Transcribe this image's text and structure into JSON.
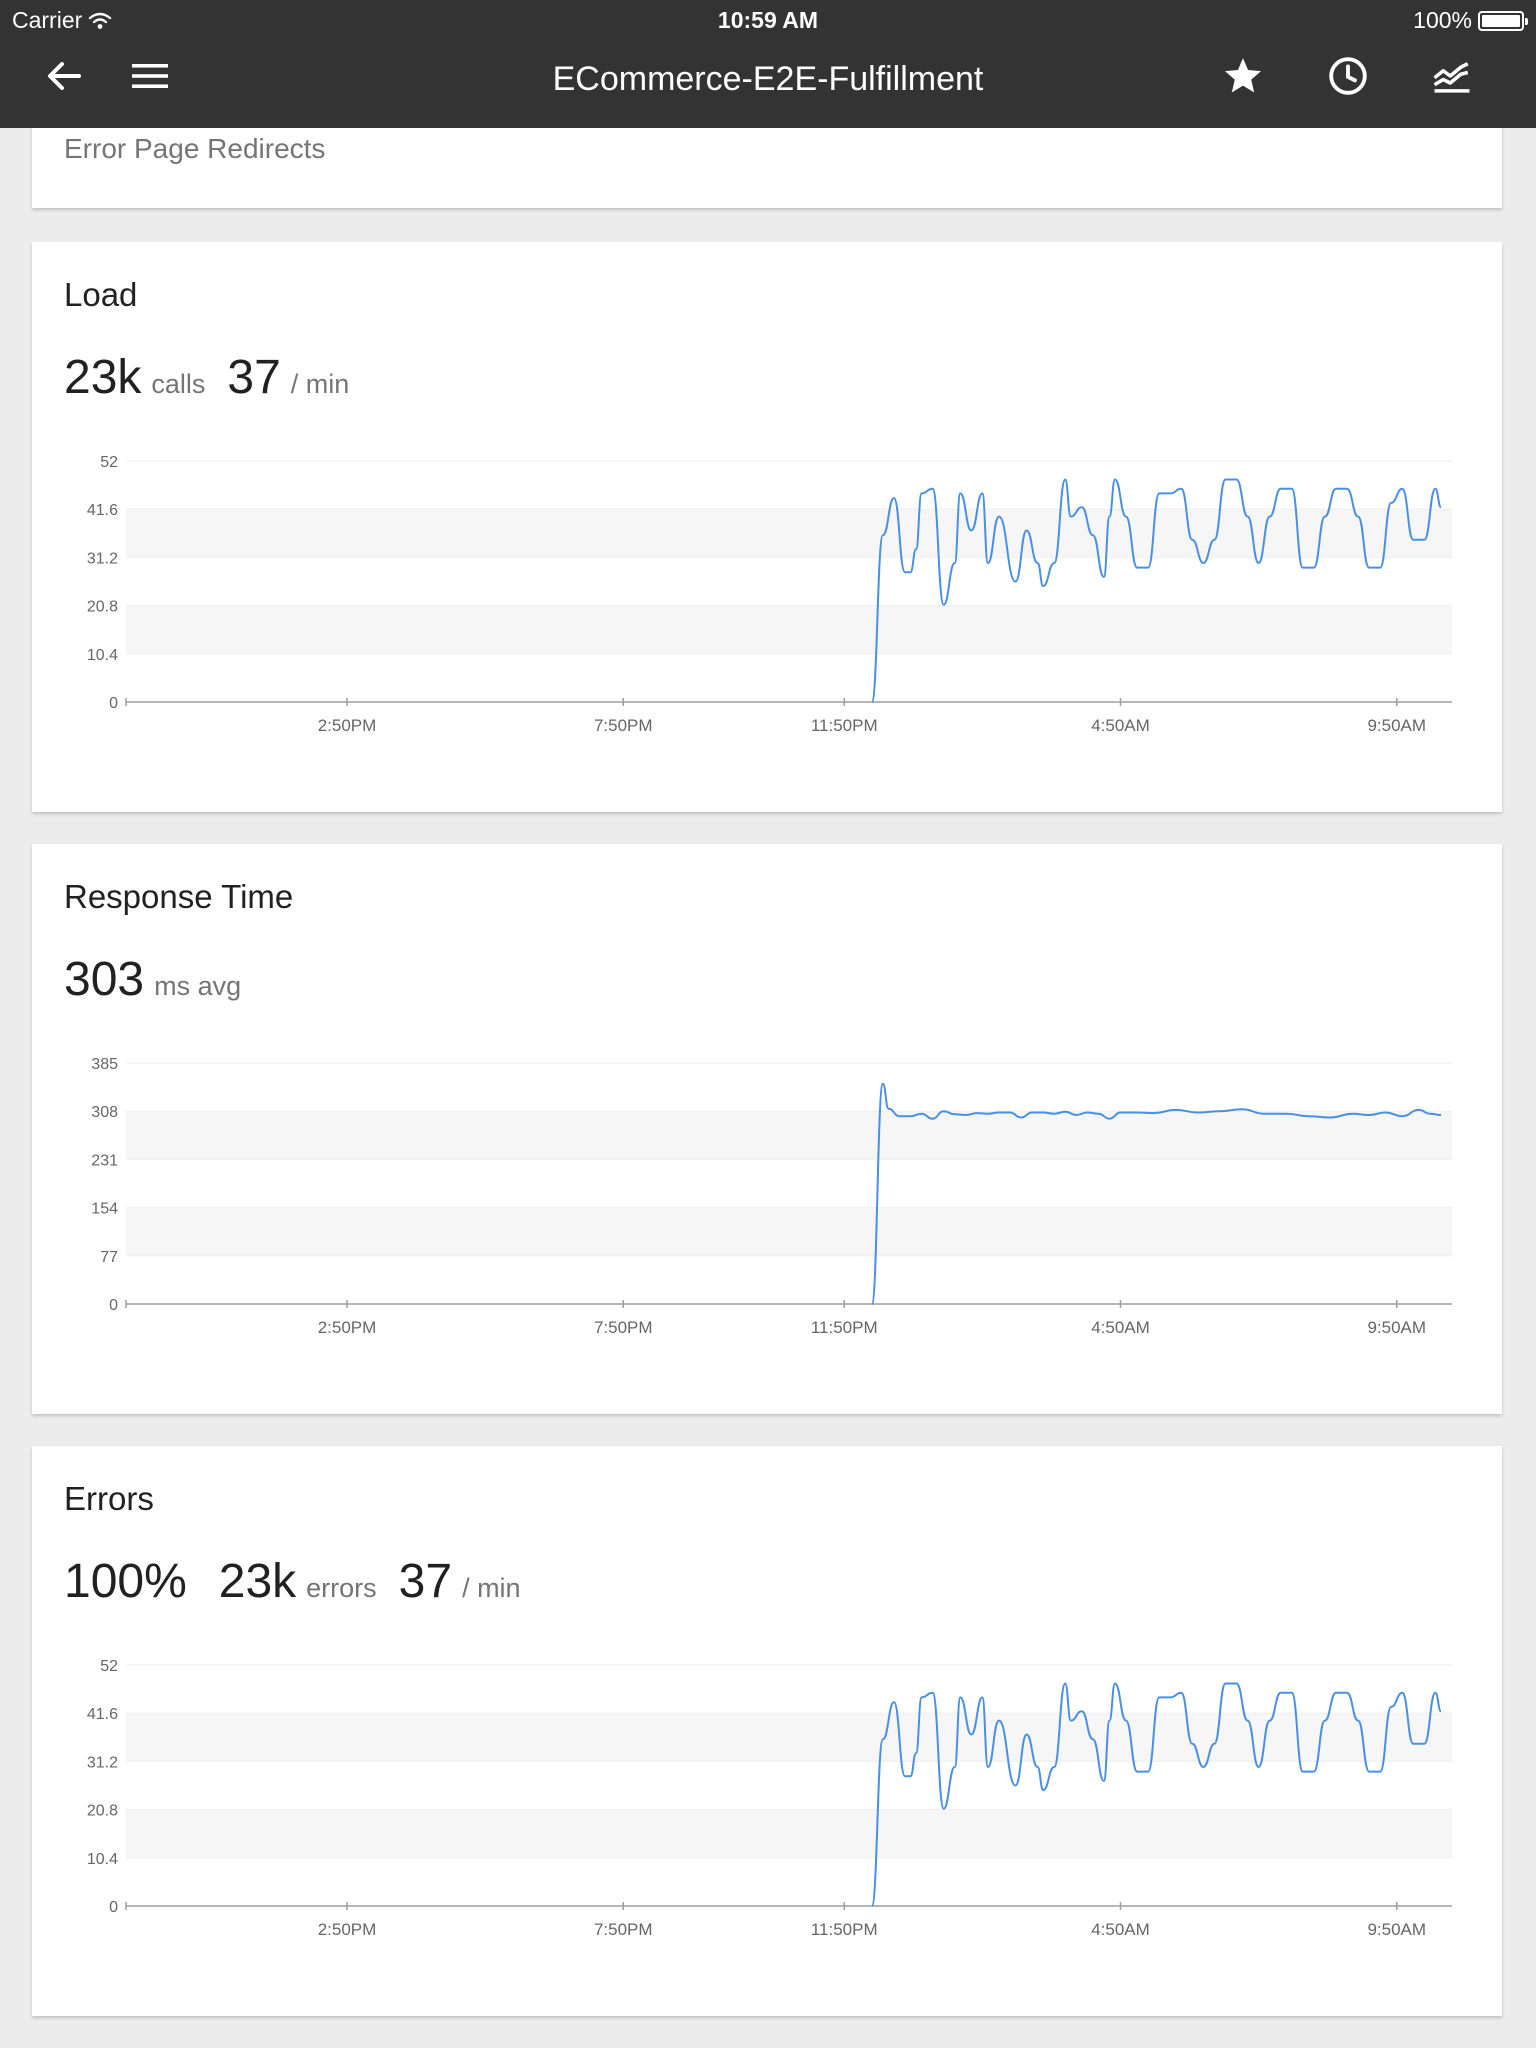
{
  "status_bar": {
    "carrier": "Carrier",
    "time": "10:59 AM",
    "battery": "100%"
  },
  "app_bar": {
    "title": "ECommerce-E2E-Fulfillment",
    "icons": [
      "back-arrow-icon",
      "menu-icon",
      "star-icon",
      "clock-icon",
      "trend-chart-icon"
    ]
  },
  "previous_card": {
    "label": "Error Page Redirects"
  },
  "colors": {
    "app_bar": "#333333",
    "line": "#4a90e2",
    "page_bg": "#ececec",
    "band": "#f6f6f6"
  },
  "cards": {
    "load": {
      "title": "Load",
      "metrics": [
        {
          "value": "23k",
          "unit": "calls"
        },
        {
          "value": "37",
          "unit": "/ min"
        }
      ]
    },
    "response_time": {
      "title": "Response Time",
      "metrics": [
        {
          "value": "303",
          "unit": "ms avg"
        }
      ]
    },
    "errors": {
      "title": "Errors",
      "metrics": [
        {
          "value": "100%",
          "unit": ""
        },
        {
          "value": "23k",
          "unit": "errors"
        },
        {
          "value": "37",
          "unit": "/ min"
        }
      ]
    }
  },
  "chart_data": [
    {
      "type": "line",
      "title": "",
      "y_ticks": [
        "0",
        "10.4",
        "20.8",
        "31.2",
        "41.6",
        "52"
      ],
      "ylim": [
        0,
        52
      ],
      "x_tick_labels": [
        "2:50PM",
        "7:50PM",
        "11:50PM",
        "4:50AM",
        "9:50AM"
      ],
      "x_tick_hours": [
        0,
        5,
        9,
        14,
        19
      ],
      "xlim_hours": [
        -4,
        20
      ],
      "grid_bands": true,
      "series": [
        {
          "color": "#4a90e2",
          "x_hours": [
            9.5,
            9.7,
            9.9,
            10.1,
            10.2,
            10.3,
            10.4,
            10.6,
            10.8,
            11.0,
            11.1,
            11.3,
            11.5,
            11.6,
            11.8,
            12.1,
            12.3,
            12.5,
            12.6,
            12.8,
            13.0,
            13.1,
            13.3,
            13.5,
            13.7,
            13.8,
            13.9,
            14.1,
            14.3,
            14.5,
            14.7,
            14.9,
            15.1,
            15.3,
            15.5,
            15.7,
            15.9,
            16.1,
            16.3,
            16.5,
            16.7,
            16.9,
            17.1,
            17.3,
            17.5,
            17.7,
            17.9,
            18.1,
            18.3,
            18.5,
            18.7,
            18.9,
            19.1,
            19.3,
            19.5,
            19.7,
            19.8
          ],
          "y": [
            0,
            36,
            44,
            28,
            28,
            33,
            45,
            46,
            21,
            30,
            45,
            37,
            45,
            30,
            40,
            26,
            37,
            30,
            25,
            30,
            48,
            40,
            42,
            36,
            27,
            40,
            48,
            40,
            29,
            29,
            45,
            45,
            46,
            35,
            30,
            35,
            48,
            48,
            40,
            30,
            40,
            46,
            46,
            29,
            29,
            40,
            46,
            46,
            40,
            29,
            29,
            43,
            46,
            35,
            35,
            46,
            42
          ]
        }
      ]
    },
    {
      "type": "line",
      "title": "",
      "y_ticks": [
        "0",
        "77",
        "154",
        "231",
        "308",
        "385"
      ],
      "ylim": [
        0,
        385
      ],
      "x_tick_labels": [
        "2:50PM",
        "7:50PM",
        "11:50PM",
        "4:50AM",
        "9:50AM"
      ],
      "x_tick_hours": [
        0,
        5,
        9,
        14,
        19
      ],
      "xlim_hours": [
        -4,
        20
      ],
      "grid_bands": true,
      "series": [
        {
          "color": "#4a90e2",
          "x_hours": [
            9.5,
            9.7,
            9.8,
            10.0,
            10.2,
            10.4,
            10.6,
            10.8,
            11.0,
            11.2,
            11.4,
            11.6,
            11.8,
            12.0,
            12.2,
            12.4,
            12.6,
            12.8,
            13.0,
            13.2,
            13.4,
            13.6,
            13.8,
            14.0,
            14.3,
            14.6,
            15.0,
            15.4,
            15.8,
            16.2,
            16.6,
            17.0,
            17.4,
            17.8,
            18.2,
            18.5,
            18.8,
            19.1,
            19.4,
            19.6,
            19.8
          ],
          "y": [
            0,
            352,
            312,
            300,
            300,
            304,
            296,
            308,
            303,
            302,
            305,
            304,
            306,
            306,
            298,
            306,
            306,
            304,
            307,
            302,
            306,
            304,
            296,
            306,
            306,
            305,
            310,
            306,
            308,
            311,
            304,
            304,
            300,
            298,
            304,
            302,
            306,
            300,
            310,
            304,
            302
          ]
        }
      ]
    },
    {
      "type": "line",
      "title": "",
      "y_ticks": [
        "0",
        "10.4",
        "20.8",
        "31.2",
        "41.6",
        "52"
      ],
      "ylim": [
        0,
        52
      ],
      "x_tick_labels": [
        "2:50PM",
        "7:50PM",
        "11:50PM",
        "4:50AM",
        "9:50AM"
      ],
      "x_tick_hours": [
        0,
        5,
        9,
        14,
        19
      ],
      "xlim_hours": [
        -4,
        20
      ],
      "grid_bands": true,
      "series": [
        {
          "color": "#4a90e2",
          "x_hours": [
            9.5,
            9.7,
            9.9,
            10.1,
            10.2,
            10.3,
            10.4,
            10.6,
            10.8,
            11.0,
            11.1,
            11.3,
            11.5,
            11.6,
            11.8,
            12.1,
            12.3,
            12.5,
            12.6,
            12.8,
            13.0,
            13.1,
            13.3,
            13.5,
            13.7,
            13.8,
            13.9,
            14.1,
            14.3,
            14.5,
            14.7,
            14.9,
            15.1,
            15.3,
            15.5,
            15.7,
            15.9,
            16.1,
            16.3,
            16.5,
            16.7,
            16.9,
            17.1,
            17.3,
            17.5,
            17.7,
            17.9,
            18.1,
            18.3,
            18.5,
            18.7,
            18.9,
            19.1,
            19.3,
            19.5,
            19.7,
            19.8
          ],
          "y": [
            0,
            36,
            44,
            28,
            28,
            33,
            45,
            46,
            21,
            30,
            45,
            37,
            45,
            30,
            40,
            26,
            37,
            30,
            25,
            30,
            48,
            40,
            42,
            36,
            27,
            40,
            48,
            40,
            29,
            29,
            45,
            45,
            46,
            35,
            30,
            35,
            48,
            48,
            40,
            30,
            40,
            46,
            46,
            29,
            29,
            40,
            46,
            46,
            40,
            29,
            29,
            43,
            46,
            35,
            35,
            46,
            42
          ]
        }
      ]
    }
  ]
}
